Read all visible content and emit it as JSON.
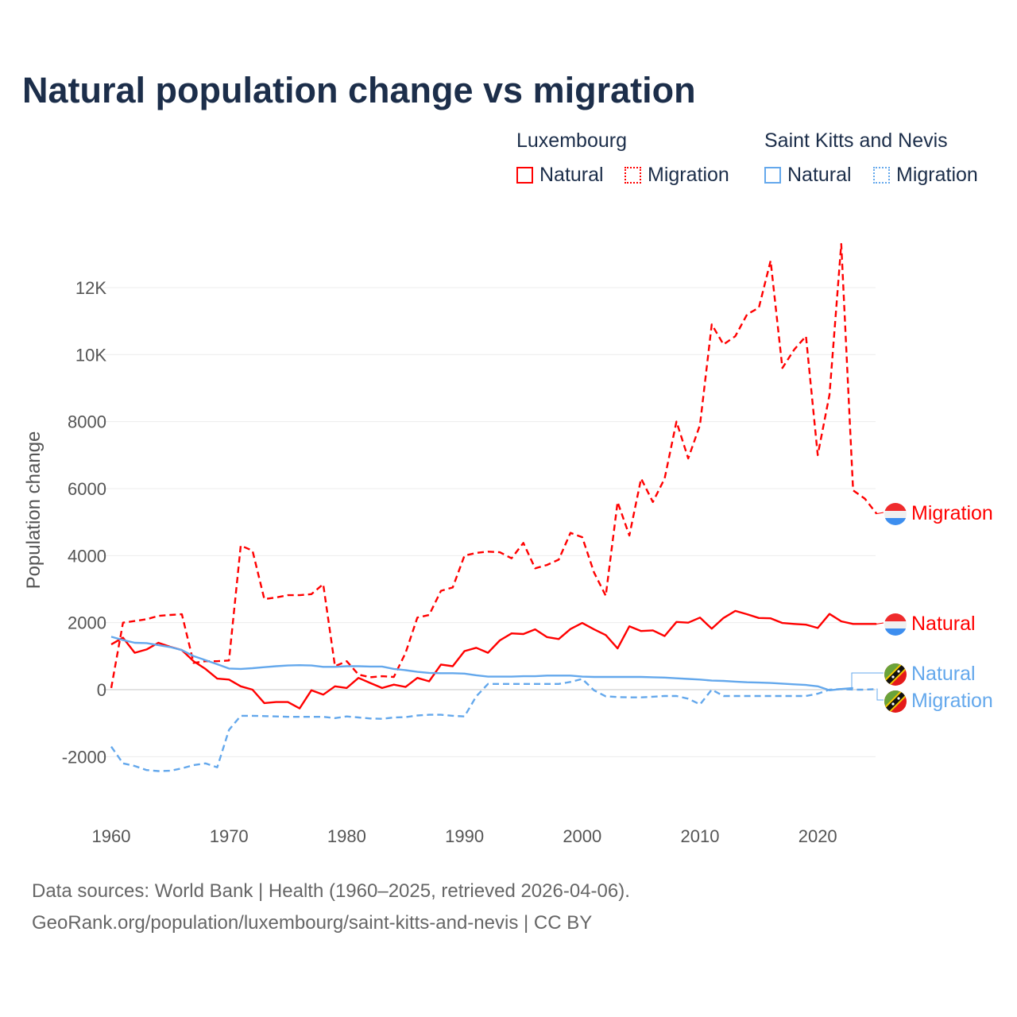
{
  "title": "Natural population change vs migration",
  "legend": {
    "groups": [
      {
        "name": "Luxembourg",
        "color": "#ff0000",
        "items": [
          "Natural",
          "Migration"
        ]
      },
      {
        "name": "Saint Kitts and Nevis",
        "color": "#64a8ec",
        "items": [
          "Natural",
          "Migration"
        ]
      }
    ]
  },
  "footer": {
    "line1": "Data sources: World Bank | Health (1960–2025, retrieved 2026-04-06).",
    "line2": "GeoRank.org/population/luxembourg/saint-kitts-and-nevis | CC BY"
  },
  "chart_data": {
    "type": "line",
    "title": "Natural population change vs migration",
    "xlabel": "",
    "ylabel": "Population change",
    "xlim": [
      1960,
      2025
    ],
    "ylim": [
      -2800,
      13500
    ],
    "x_ticks": [
      "1960",
      "1970",
      "1980",
      "1990",
      "2000",
      "2010",
      "2020"
    ],
    "y_ticks": [
      {
        "v": -2000,
        "label": "-2000"
      },
      {
        "v": 0,
        "label": "0"
      },
      {
        "v": 2000,
        "label": "2000"
      },
      {
        "v": 4000,
        "label": "4000"
      },
      {
        "v": 6000,
        "label": "6000"
      },
      {
        "v": 8000,
        "label": "8000"
      },
      {
        "v": 10000,
        "label": "10K"
      },
      {
        "v": 12000,
        "label": "12K"
      }
    ],
    "grid": true,
    "x_start": 1960,
    "series": [
      {
        "name": "Luxembourg Migration",
        "end_label": "Migration",
        "color": "#ff0000",
        "dashed": true,
        "flag": "luxembourg",
        "values": [
          50,
          2000,
          2050,
          2100,
          2200,
          2230,
          2250,
          800,
          850,
          850,
          870,
          4300,
          4150,
          2700,
          2750,
          2820,
          2820,
          2850,
          3150,
          700,
          850,
          450,
          370,
          400,
          380,
          1100,
          2150,
          2230,
          2950,
          3050,
          4000,
          4080,
          4120,
          4100,
          3920,
          4380,
          3620,
          3720,
          3880,
          4680,
          4550,
          3500,
          2800,
          5600,
          4600,
          6300,
          5600,
          6300,
          8000,
          6900,
          7900,
          10900,
          10300,
          10550,
          11200,
          11400,
          12800,
          9600,
          10150,
          10550,
          7000,
          8800,
          13300,
          5950,
          5700,
          5250
        ]
      },
      {
        "name": "Luxembourg Natural",
        "end_label": "Natural",
        "color": "#ff0000",
        "dashed": false,
        "flag": "luxembourg",
        "values": [
          1350,
          1550,
          1100,
          1200,
          1400,
          1280,
          1180,
          850,
          620,
          330,
          300,
          100,
          0,
          -400,
          -370,
          -370,
          -560,
          -20,
          -150,
          100,
          50,
          350,
          200,
          50,
          150,
          80,
          350,
          250,
          750,
          700,
          1150,
          1250,
          1100,
          1470,
          1680,
          1660,
          1800,
          1570,
          1510,
          1810,
          1990,
          1800,
          1630,
          1230,
          1890,
          1750,
          1770,
          1600,
          2020,
          2000,
          2150,
          1820,
          2140,
          2350,
          2250,
          2140,
          2130,
          1990,
          1960,
          1940,
          1840,
          2260,
          2040,
          1960,
          1960,
          1960
        ]
      },
      {
        "name": "Saint Kitts and Nevis Natural",
        "end_label": "Natural",
        "color": "#64a8ec",
        "dashed": false,
        "flag": "saint-kitts-and-nevis",
        "values": [
          1580,
          1480,
          1400,
          1390,
          1330,
          1270,
          1180,
          1000,
          880,
          760,
          630,
          620,
          640,
          670,
          700,
          720,
          730,
          720,
          680,
          680,
          700,
          700,
          690,
          690,
          620,
          580,
          530,
          500,
          490,
          490,
          480,
          430,
          390,
          390,
          390,
          400,
          400,
          420,
          420,
          420,
          390,
          380,
          380,
          380,
          380,
          380,
          370,
          360,
          340,
          320,
          300,
          270,
          260,
          240,
          220,
          210,
          200,
          180,
          160,
          140,
          100,
          -20,
          20,
          50,
          null,
          null
        ]
      },
      {
        "name": "Saint Kitts and Nevis Migration",
        "end_label": "Migration",
        "color": "#64a8ec",
        "dashed": true,
        "flag": "saint-kitts-and-nevis",
        "values": [
          -1700,
          -2200,
          -2280,
          -2400,
          -2430,
          -2420,
          -2350,
          -2250,
          -2200,
          -2320,
          -1200,
          -780,
          -780,
          -790,
          -800,
          -810,
          -810,
          -810,
          -810,
          -850,
          -800,
          -830,
          -860,
          -870,
          -830,
          -820,
          -770,
          -750,
          -750,
          -780,
          -800,
          -200,
          170,
          170,
          170,
          170,
          170,
          170,
          170,
          230,
          320,
          -20,
          -200,
          -220,
          -230,
          -230,
          -210,
          -190,
          -190,
          -270,
          -440,
          0,
          -190,
          -190,
          -190,
          -190,
          -190,
          -190,
          -190,
          -190,
          -120,
          0,
          20,
          0,
          0,
          20
        ]
      }
    ]
  }
}
